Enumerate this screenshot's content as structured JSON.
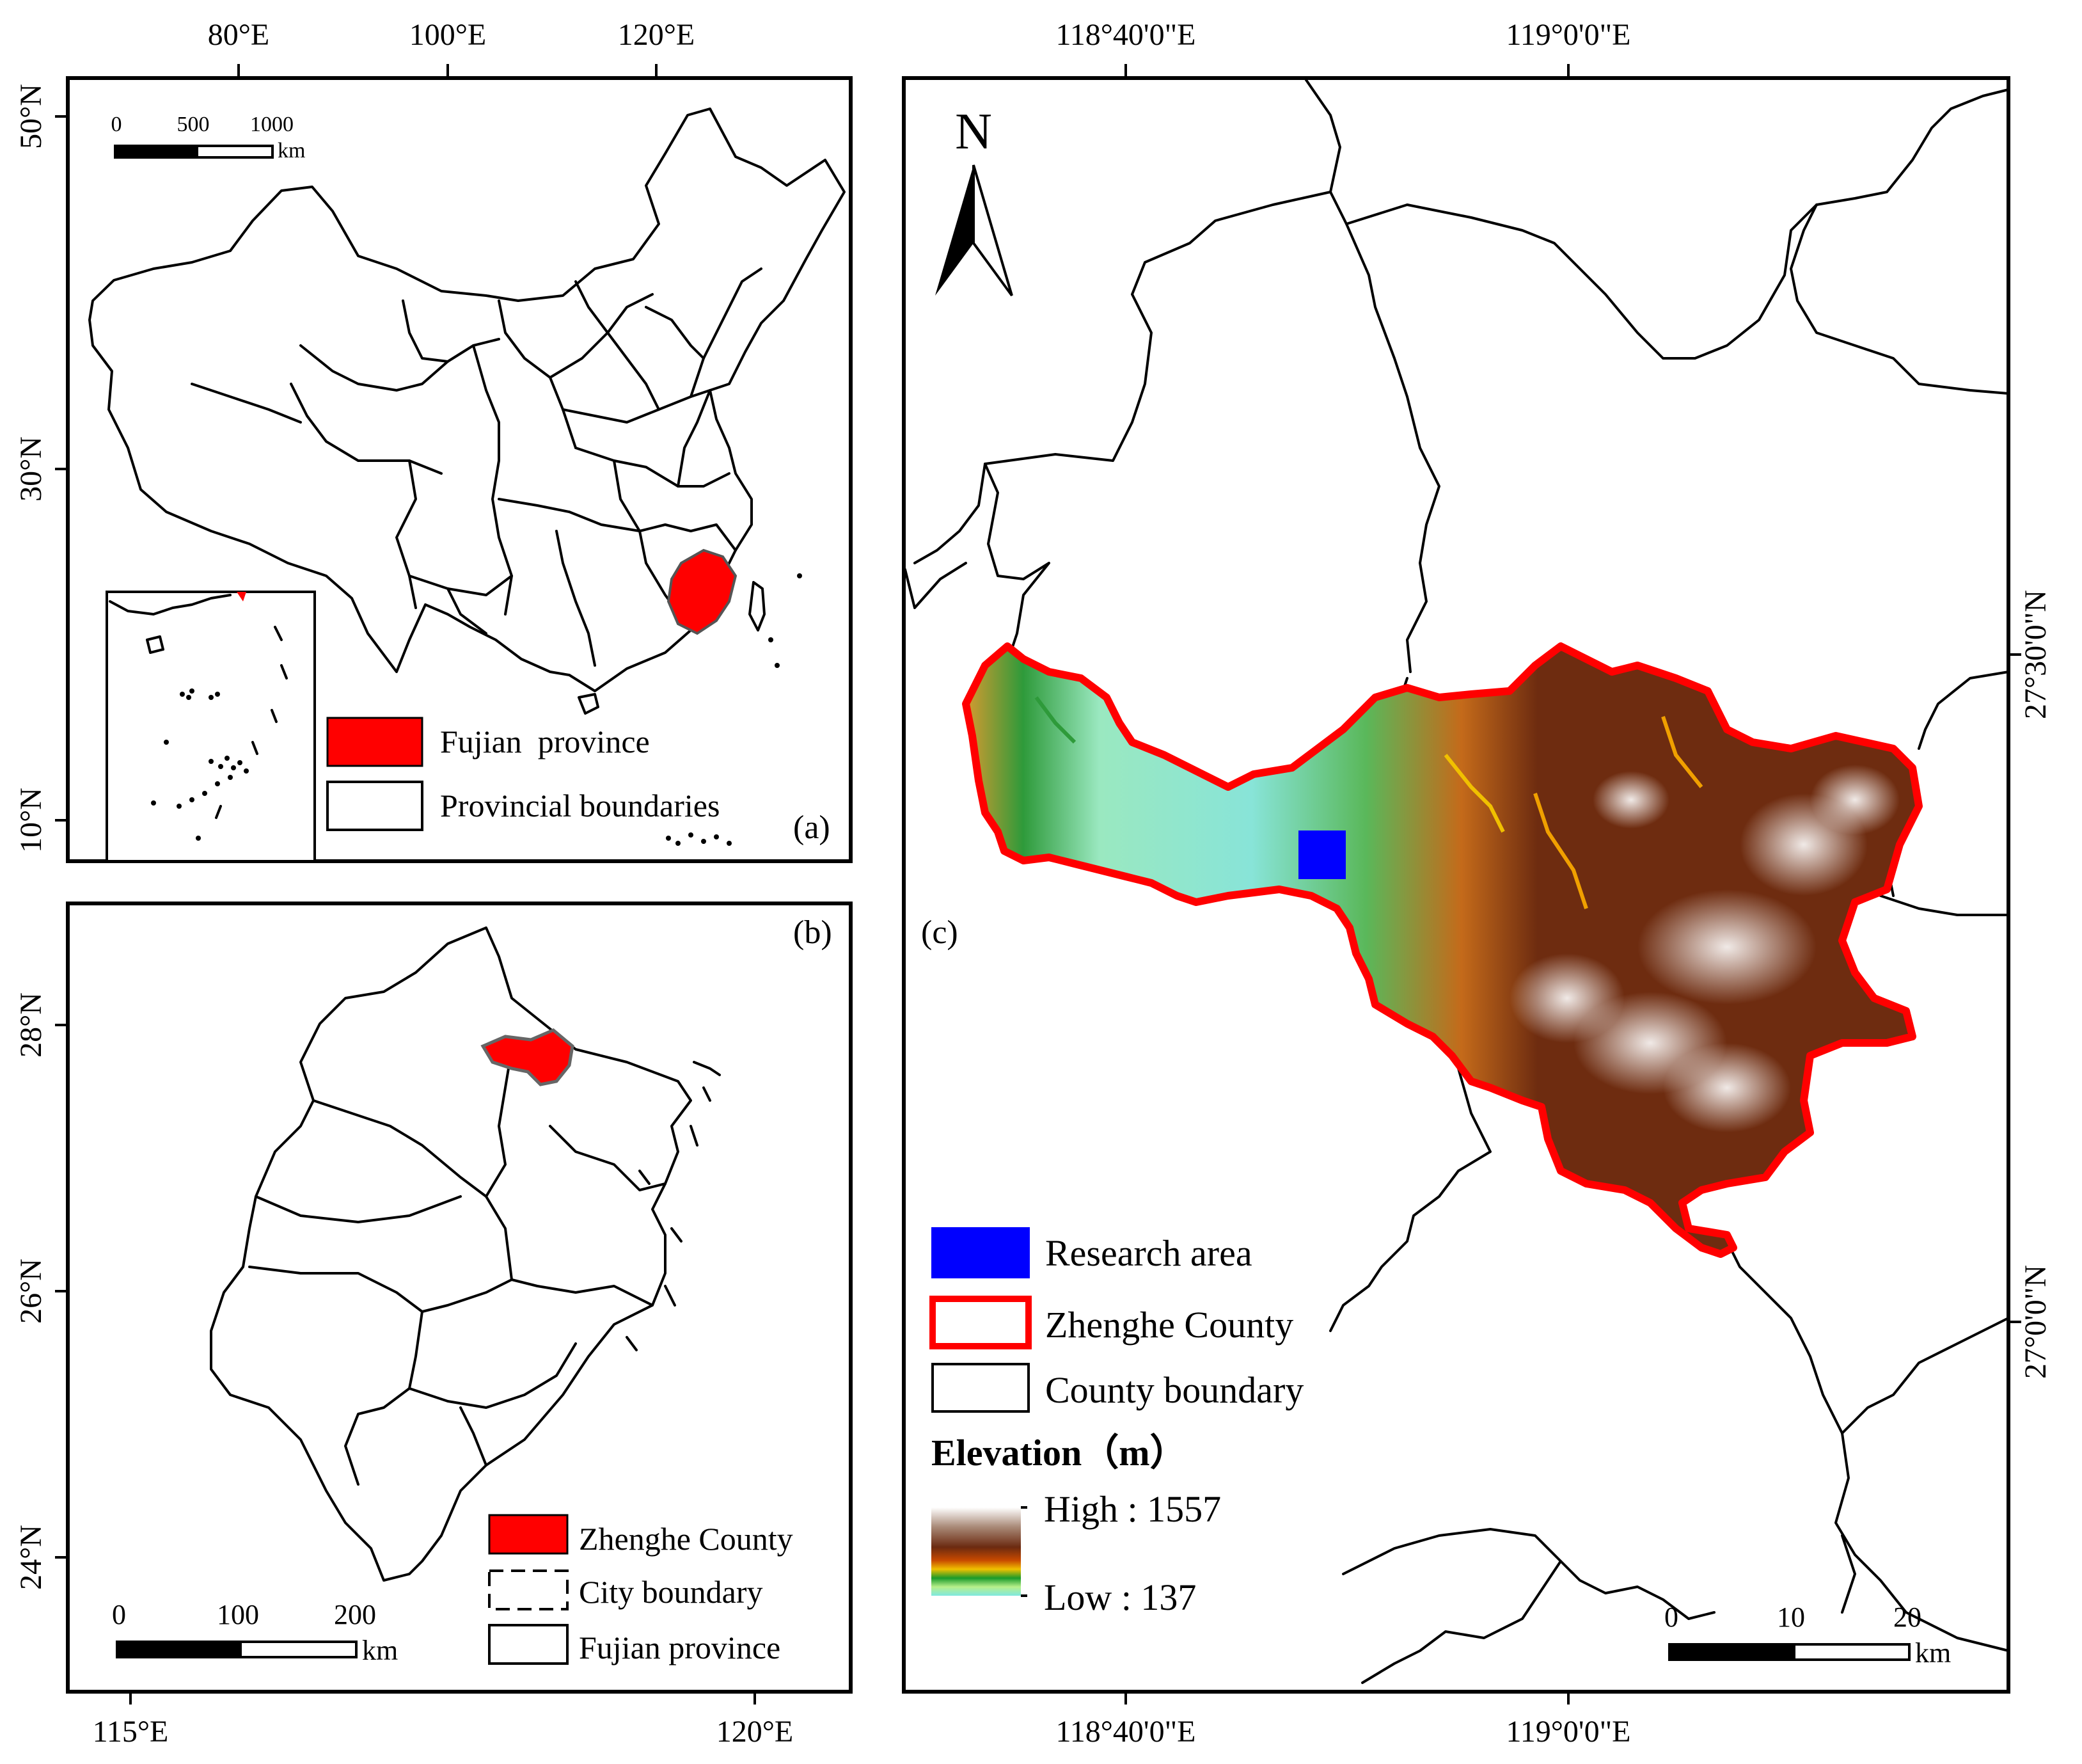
{
  "panel_a": {
    "label": "(a)",
    "top_ticks": [
      "80°E",
      "100°E",
      "120°E"
    ],
    "left_ticks": [
      "50°N",
      "30°N",
      "10°N"
    ],
    "scale": {
      "ticks": [
        "0",
        "500",
        "1000"
      ],
      "unit": "km"
    },
    "legend": [
      {
        "label": "Fujian  province",
        "swatch": "#ff0000"
      },
      {
        "label": "Provincial boundaries",
        "swatch": "#ffffff"
      }
    ]
  },
  "panel_b": {
    "label": "(b)",
    "left_ticks": [
      "28°N",
      "26°N",
      "24°N"
    ],
    "bottom_ticks": [
      "115°E",
      "120°E"
    ],
    "scale": {
      "ticks": [
        "0",
        "100",
        "200"
      ],
      "unit": "km"
    },
    "legend": [
      {
        "label": "Zhenghe County",
        "swatch": "#ff0000"
      },
      {
        "label": "City boundary",
        "swatch": "dashed"
      },
      {
        "label": "Fujian province",
        "swatch": "#ffffff"
      }
    ]
  },
  "panel_c": {
    "label": "(c)",
    "top_ticks": [
      "118°40'0\"E",
      "119°0'0\"E"
    ],
    "bottom_ticks": [
      "118°40'0\"E",
      "119°0'0\"E"
    ],
    "right_ticks": [
      "27°30'0\"N",
      "27°0'0\"N"
    ],
    "north": "N",
    "legend": [
      {
        "label": "Research area",
        "swatch": "#0000ff"
      },
      {
        "label": "Zhenghe County",
        "swatch": "red-outline"
      },
      {
        "label": "County boundary",
        "swatch": "#ffffff"
      }
    ],
    "elevation": {
      "title": "Elevation（m）",
      "high": "High : 1557",
      "low": "Low : 137"
    },
    "scale": {
      "ticks": [
        "0",
        "10",
        "20"
      ],
      "unit": "km"
    }
  },
  "colors": {
    "fujian_fill": "#ff0000",
    "research_area": "#0000ff",
    "county_outline": "#ff0000",
    "elev_high": "#ffffff",
    "elev_mid": "#7a3a12",
    "elev_low": "#7fe8e0"
  }
}
